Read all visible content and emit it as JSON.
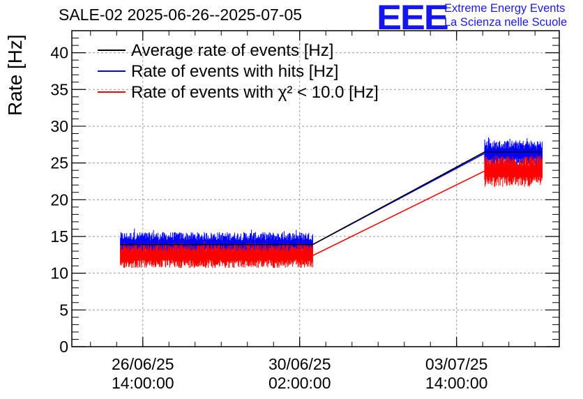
{
  "header": {
    "title": "SALE-02 2025-06-26--2025-07-05",
    "logo_text": "EEE",
    "org_line1": "Extreme Energy Events",
    "org_line2": "La Scienza nelle Scuole"
  },
  "chart_data": {
    "type": "line",
    "title": "SALE-02 2025-06-26--2025-07-05",
    "ylabel": "Rate [Hz]",
    "xlabel": "",
    "ylim": [
      0,
      43
    ],
    "xlim": [
      "2025-06-25T00:00:00",
      "2025-07-05T21:00:00"
    ],
    "y_ticks": [
      "0",
      "5",
      "10",
      "15",
      "20",
      "25",
      "30",
      "35",
      "40"
    ],
    "y_tick_values": [
      0,
      5,
      10,
      15,
      20,
      25,
      30,
      35,
      40
    ],
    "x_ticks": [
      {
        "date": "26/06/25",
        "time": "14:00:00",
        "value": "2025-06-26T14:00:00"
      },
      {
        "date": "30/06/25",
        "time": "02:00:00",
        "value": "2025-06-30T02:00:00"
      },
      {
        "date": "03/07/25",
        "time": "14:00:00",
        "value": "2025-07-03T14:00:00"
      }
    ],
    "grid": true,
    "legend_position": "top-left",
    "series": [
      {
        "name": "Average rate of events [Hz]",
        "color": "#000000",
        "segments": [
          {
            "x_start": "2025-06-26T02:00:00",
            "x_end": "2025-06-30T09:00:00",
            "y_mean": 13.9
          },
          {
            "x_start": "2025-07-04T05:00:00",
            "x_end": "2025-07-05T12:00:00",
            "y_mean": 26.5
          }
        ]
      },
      {
        "name": "Rate of events with hits [Hz]",
        "color": "#0000ff",
        "segments": [
          {
            "x_start": "2025-06-26T02:00:00",
            "x_end": "2025-06-30T09:00:00",
            "y_mean": 13.9,
            "y_min": 12.3,
            "y_max": 16.1
          },
          {
            "x_start": "2025-07-04T05:00:00",
            "x_end": "2025-07-05T12:00:00",
            "y_mean": 26.3,
            "y_min": 24.6,
            "y_max": 28.6
          }
        ]
      },
      {
        "name": "Rate of events with χ² < 10.0 [Hz]",
        "color": "#ff0000",
        "segments": [
          {
            "x_start": "2025-06-26T02:00:00",
            "x_end": "2025-06-30T09:00:00",
            "y_mean": 12.4,
            "y_min": 10.6,
            "y_max": 14.4
          },
          {
            "x_start": "2025-07-04T05:00:00",
            "x_end": "2025-07-05T12:00:00",
            "y_mean": 23.9,
            "y_min": 21.3,
            "y_max": 26.1
          }
        ]
      }
    ]
  }
}
